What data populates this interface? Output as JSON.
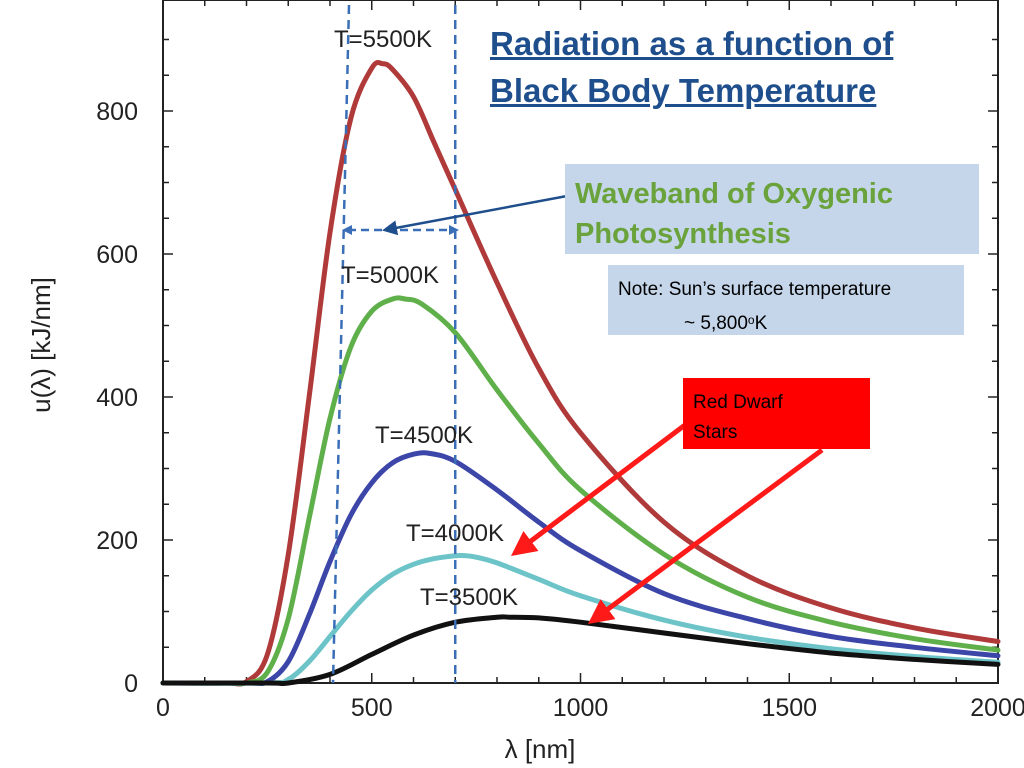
{
  "chart_data": {
    "type": "line",
    "title": "",
    "xlabel": "λ [nm]",
    "ylabel": "u(λ) [kJ/nm]",
    "xlim": [
      0,
      2000
    ],
    "ylim": [
      0,
      880
    ],
    "x_ticks": [
      0,
      500,
      1000,
      1500,
      2000
    ],
    "y_ticks": [
      0,
      200,
      400,
      600,
      800
    ],
    "grid": false,
    "series": [
      {
        "name": "T=5500K",
        "color": "#b03a3a",
        "x": [
          150,
          200,
          250,
          300,
          350,
          400,
          450,
          500,
          527,
          550,
          600,
          650,
          700,
          800,
          900,
          1000,
          1200,
          1400,
          1600,
          1800,
          2000
        ],
        "y": [
          0,
          2,
          40,
          180,
          400,
          630,
          790,
          860,
          866,
          858,
          820,
          755,
          690,
          560,
          440,
          350,
          225,
          150,
          105,
          77,
          58
        ]
      },
      {
        "name": "T=5000K",
        "color": "#5fb04a",
        "x": [
          150,
          200,
          250,
          300,
          350,
          400,
          450,
          500,
          550,
          580,
          620,
          700,
          800,
          900,
          1000,
          1200,
          1400,
          1600,
          1800,
          2000
        ],
        "y": [
          0,
          0,
          15,
          90,
          230,
          370,
          470,
          520,
          537,
          537,
          530,
          490,
          410,
          335,
          270,
          180,
          120,
          85,
          62,
          46
        ]
      },
      {
        "name": "T=4500K",
        "color": "#3c45a8",
        "x": [
          200,
          250,
          300,
          350,
          400,
          450,
          500,
          550,
          600,
          640,
          700,
          800,
          900,
          1000,
          1200,
          1400,
          1600,
          1800,
          2000
        ],
        "y": [
          0,
          2,
          30,
          95,
          170,
          235,
          280,
          308,
          320,
          321,
          310,
          270,
          225,
          185,
          125,
          90,
          65,
          50,
          38
        ]
      },
      {
        "name": "T=4000K",
        "color": "#6cc4c8",
        "x": [
          250,
          300,
          350,
          400,
          450,
          500,
          550,
          600,
          650,
          700,
          725,
          750,
          800,
          900,
          1000,
          1200,
          1400,
          1600,
          1800,
          2000
        ],
        "y": [
          0,
          5,
          30,
          65,
          100,
          130,
          152,
          166,
          174,
          178,
          178,
          176,
          168,
          145,
          122,
          88,
          64,
          48,
          37,
          29
        ]
      },
      {
        "name": "T=3500K",
        "color": "#111111",
        "x": [
          250,
          300,
          400,
          500,
          600,
          700,
          800,
          830,
          900,
          1000,
          1200,
          1400,
          1600,
          1800,
          2000
        ],
        "y": [
          0,
          0,
          12,
          40,
          67,
          85,
          92,
          92,
          91,
          85,
          70,
          55,
          42,
          33,
          26
        ]
      }
    ],
    "annotations": [
      "T=5500K",
      "T=5000K",
      "T=4500K",
      "T=4000K",
      "T=3500K"
    ],
    "waveband_nm": [
      410,
      700
    ]
  },
  "overlay": {
    "title_line1": "Radiation as a function of",
    "title_line2": "Black Body Temperature",
    "waveband_line1": "Waveband of Oxygenic",
    "waveband_line2": "Photosynthesis",
    "note_line1": "Note: Sun’s surface temperature",
    "note_line2_prefix": "~ 5,800",
    "note_line2_sup": "o",
    "note_line2_suffix": "K",
    "red_dwarf_line1": " Red Dwarf",
    "red_dwarf_line2": "Stars",
    "colors": {
      "title": "#1f4e8c",
      "waveband_text": "#6aa23b",
      "box_fill": "#c5d6ea",
      "red_box": "#ff0000",
      "arrow_red": "#ff1a1a",
      "arrow_blue": "#1f4e8c",
      "dashed": "#3a6fb8"
    }
  }
}
